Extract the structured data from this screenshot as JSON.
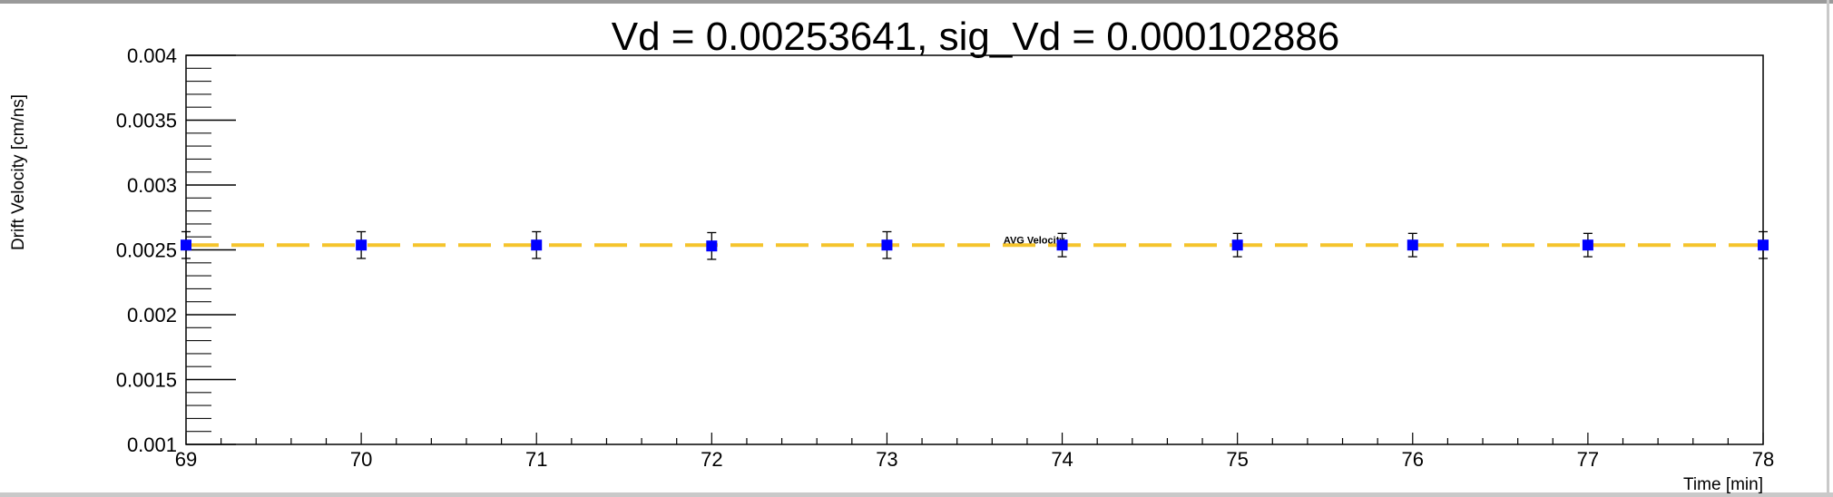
{
  "chart_data": {
    "type": "scatter",
    "title": "Vd = 0.00253641, sig_Vd = 0.000102886",
    "xlabel": "Time [min]",
    "ylabel": "Drift Velocity [cm/ns]",
    "xlim": [
      69,
      78
    ],
    "ylim": [
      0.001,
      0.004
    ],
    "x_ticks": [
      69,
      70,
      71,
      72,
      73,
      74,
      75,
      76,
      77,
      78
    ],
    "x_tick_labels": [
      "69",
      "70",
      "71",
      "72",
      "73",
      "74",
      "75",
      "76",
      "77",
      "78"
    ],
    "y_ticks": [
      0.001,
      0.0015,
      0.002,
      0.0025,
      0.003,
      0.0035,
      0.004
    ],
    "y_tick_labels": [
      "0.001",
      "0.0015",
      "0.002",
      "0.0025",
      "0.003",
      "0.0035",
      "0.004"
    ],
    "grid": false,
    "series": [
      {
        "x": [
          69,
          70,
          71,
          72,
          73,
          74,
          75,
          76,
          77,
          78
        ],
        "y": [
          0.002537,
          0.002537,
          0.002537,
          0.00253,
          0.002537,
          0.002537,
          0.002537,
          0.002537,
          0.002537,
          0.002537
        ],
        "yerr": [
          0.000103,
          0.000103,
          0.000103,
          0.000103,
          0.000103,
          9e-05,
          9e-05,
          9e-05,
          9e-05,
          0.000103
        ],
        "color": "#0000ff"
      }
    ],
    "reference_line": {
      "label": "AVG Velocity",
      "y": 0.00253641,
      "color": "#f5c42c",
      "style": "dashed"
    }
  }
}
